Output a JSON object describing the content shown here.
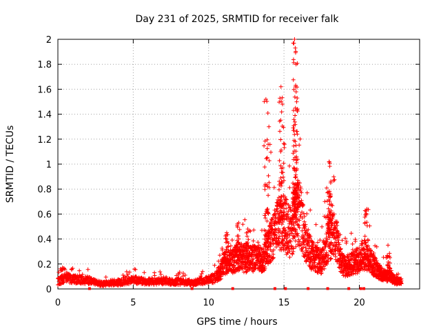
{
  "chart_data": {
    "type": "scatter",
    "title": "Day 231 of 2025, SRMTID for receiver falk",
    "xlabel": "GPS time / hours",
    "ylabel": "SRMTID / TECUs",
    "xlim": [
      0,
      24
    ],
    "ylim": [
      0,
      2
    ],
    "xticks": [
      "0",
      "5",
      "10",
      "15",
      "20"
    ],
    "yticks": [
      "0",
      "0.2",
      "0.4",
      "0.6",
      "0.8",
      "1",
      "1.2",
      "1.4",
      "1.6",
      "1.8",
      "2"
    ],
    "grid": true,
    "marker": "plus",
    "color": "#ff0000",
    "series": [
      {
        "name": "SRMTID",
        "envelope_x": [
          0,
          0.5,
          1,
          2,
          2.5,
          3,
          4,
          5,
          6,
          7,
          8,
          9,
          9.5,
          10,
          10.5,
          10.8,
          11,
          11.5,
          12,
          12.5,
          13,
          13.5,
          13.8,
          14,
          14.3,
          14.6,
          14.9,
          15.2,
          15.5,
          15.8,
          16.1,
          16.4,
          16.7,
          17,
          17.5,
          18,
          18.2,
          18.5,
          18.8,
          19,
          19.5,
          20,
          20.3,
          20.6,
          21,
          21.5,
          21.8,
          22,
          22.3,
          22.6,
          22.8
        ],
        "envelope_y": [
          0.06,
          0.09,
          0.08,
          0.07,
          0.05,
          0.04,
          0.05,
          0.07,
          0.06,
          0.06,
          0.06,
          0.05,
          0.06,
          0.07,
          0.1,
          0.14,
          0.2,
          0.22,
          0.26,
          0.24,
          0.24,
          0.23,
          0.26,
          0.34,
          0.42,
          0.5,
          0.55,
          0.48,
          0.45,
          0.62,
          0.58,
          0.4,
          0.3,
          0.25,
          0.22,
          0.42,
          0.45,
          0.38,
          0.22,
          0.18,
          0.2,
          0.24,
          0.28,
          0.24,
          0.18,
          0.12,
          0.1,
          0.12,
          0.07,
          0.06,
          0.06
        ],
        "spikes": [
          {
            "x": 0.3,
            "y": 0.17
          },
          {
            "x": 11.2,
            "y": 0.45
          },
          {
            "x": 12.0,
            "y": 0.53
          },
          {
            "x": 12.6,
            "y": 0.48
          },
          {
            "x": 13.8,
            "y": 1.52
          },
          {
            "x": 14.0,
            "y": 1.3
          },
          {
            "x": 14.8,
            "y": 1.62
          },
          {
            "x": 14.9,
            "y": 1.48
          },
          {
            "x": 15.7,
            "y": 2.0
          },
          {
            "x": 15.75,
            "y": 1.93
          },
          {
            "x": 15.8,
            "y": 1.8
          },
          {
            "x": 15.8,
            "y": 1.15
          },
          {
            "x": 18.0,
            "y": 1.02
          },
          {
            "x": 18.1,
            "y": 0.85
          },
          {
            "x": 20.5,
            "y": 0.64
          },
          {
            "x": 21.9,
            "y": 0.35
          }
        ]
      }
    ]
  }
}
